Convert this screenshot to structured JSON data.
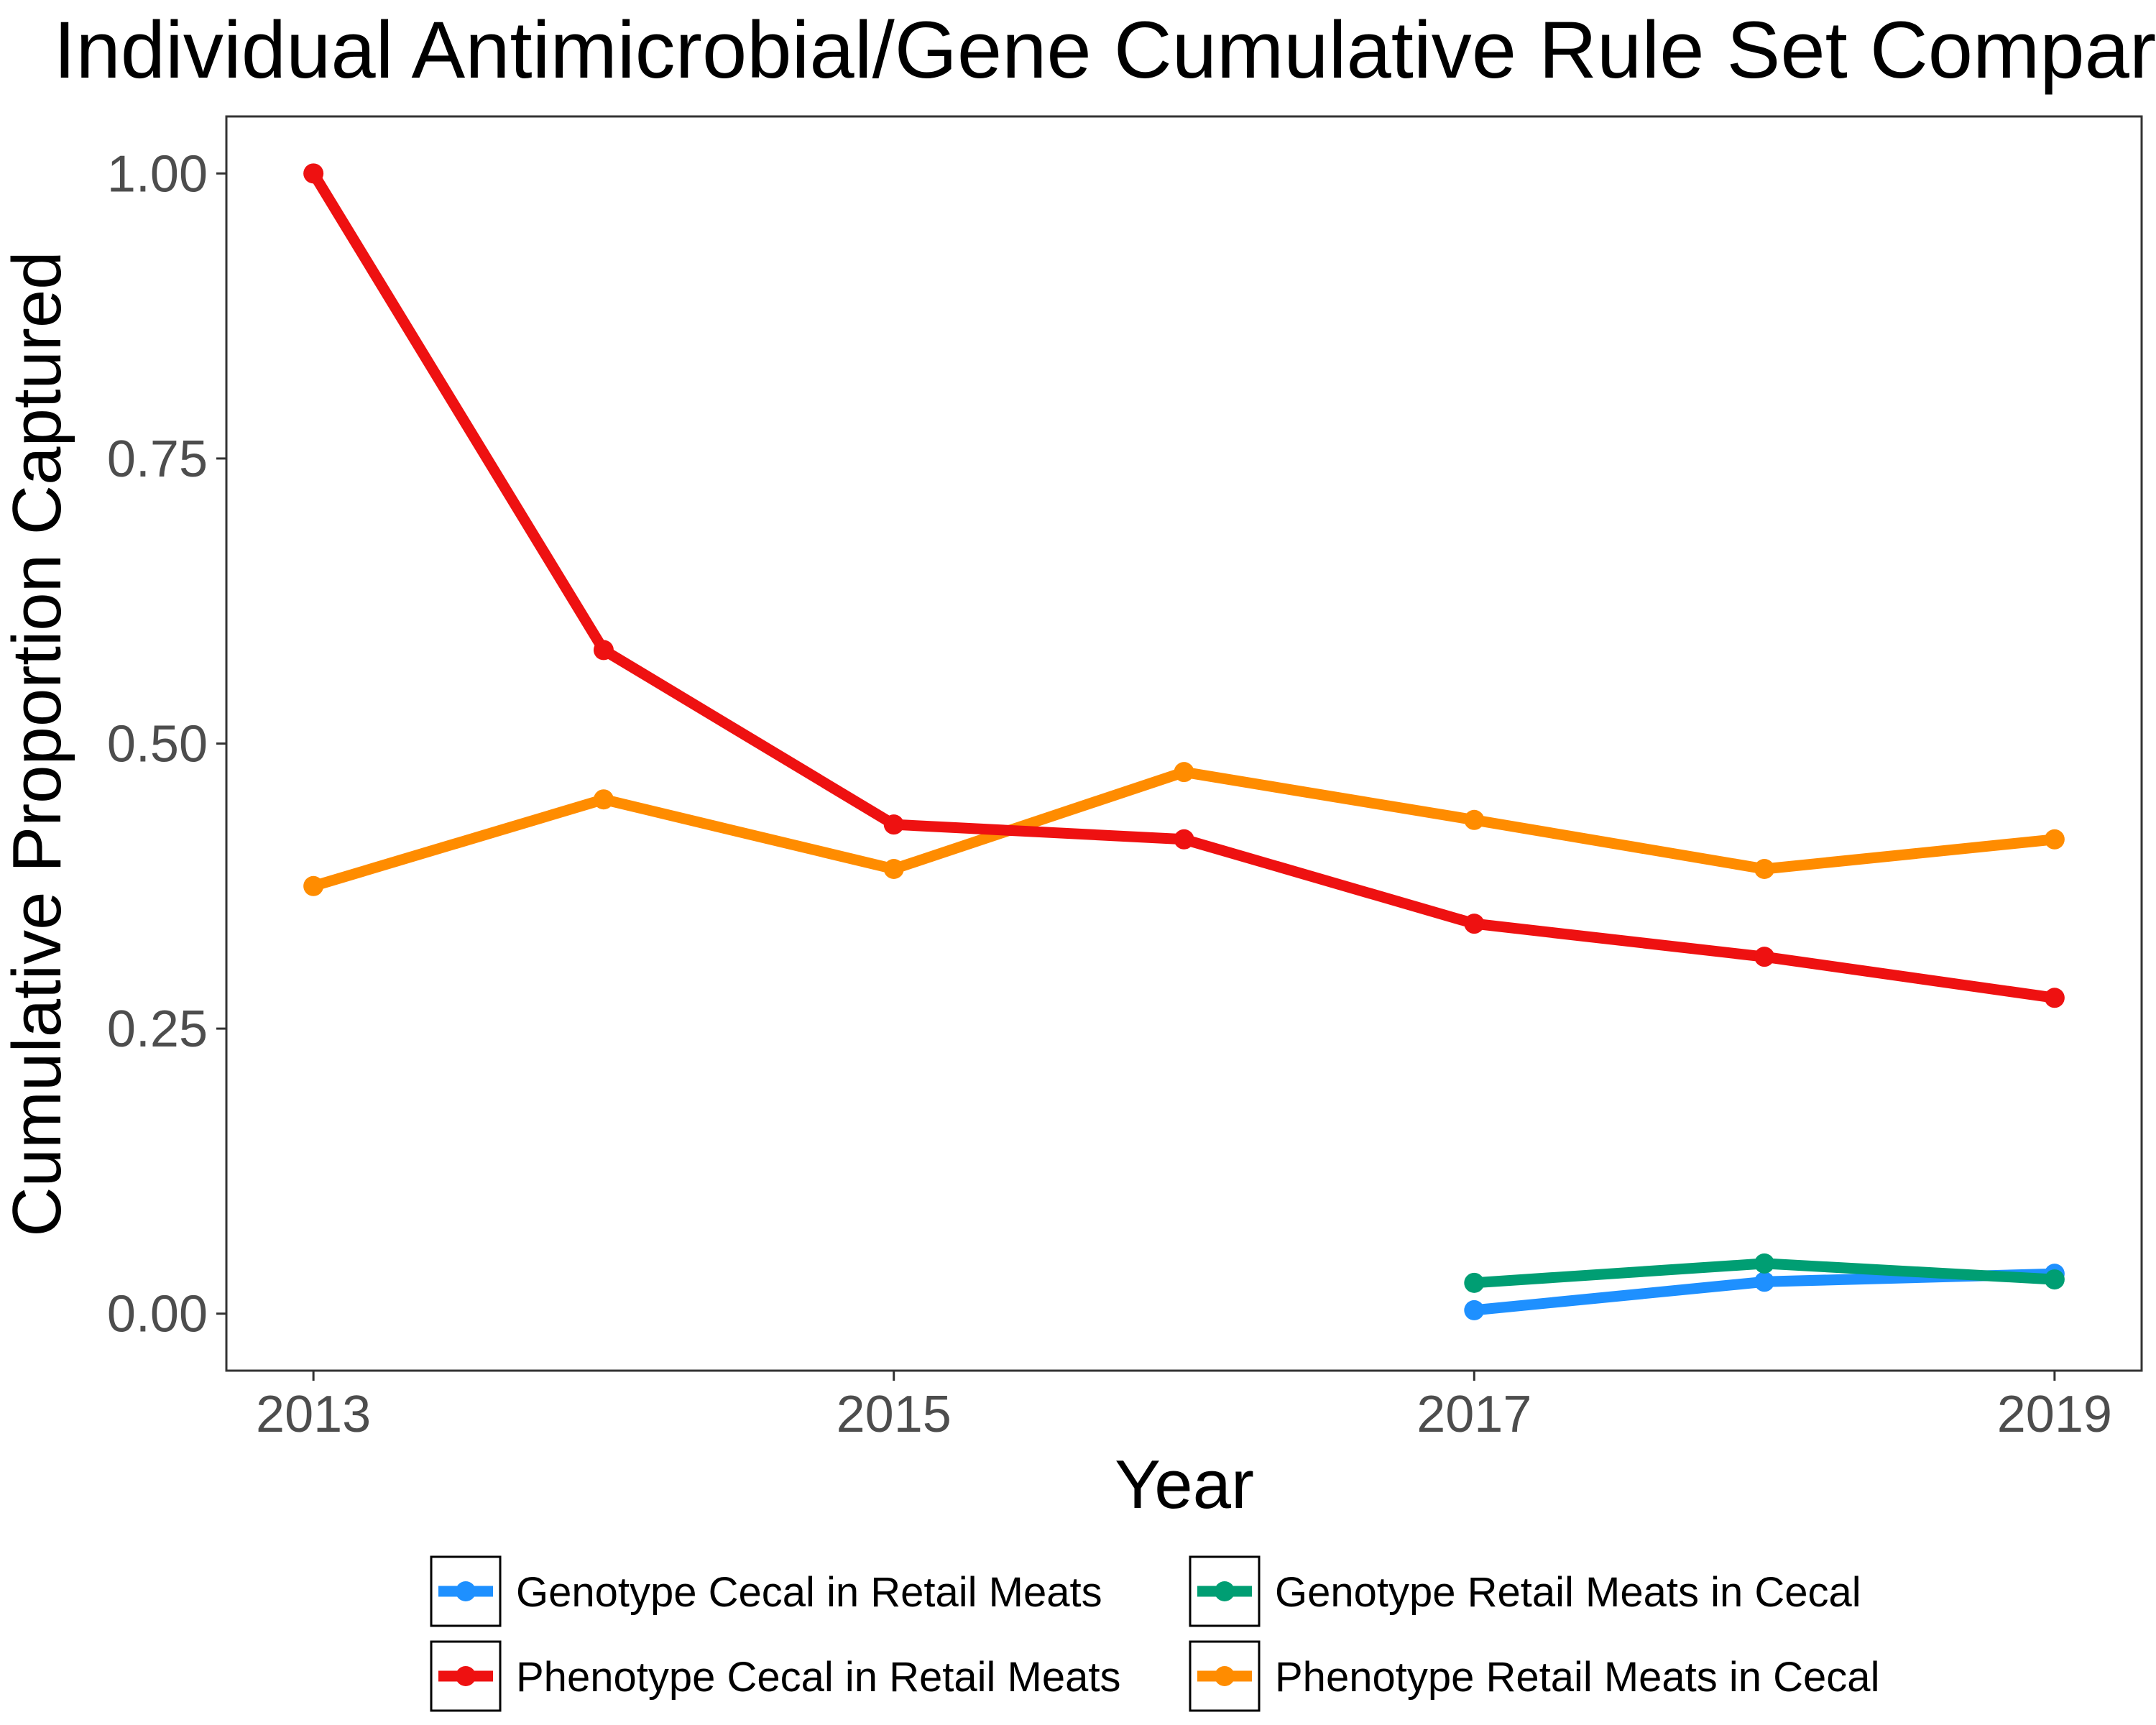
{
  "chart_data": {
    "type": "line",
    "title": "Individual Antimicrobial/Gene Cumulative Rule Set Comparison",
    "xlabel": "Year",
    "ylabel": "Cumulative Proportion Captured",
    "xlim": [
      2012.7,
      2019.3
    ],
    "ylim": [
      -0.05,
      1.05
    ],
    "x_ticks": [
      {
        "value": 2013,
        "label": "2013"
      },
      {
        "value": 2015,
        "label": "2015"
      },
      {
        "value": 2017,
        "label": "2017"
      },
      {
        "value": 2019,
        "label": "2019"
      }
    ],
    "y_ticks": [
      {
        "value": 0,
        "label": "0.00"
      },
      {
        "value": 0.25,
        "label": "0.25"
      },
      {
        "value": 0.5,
        "label": "0.50"
      },
      {
        "value": 0.75,
        "label": "0.75"
      },
      {
        "value": 1,
        "label": "1.00"
      }
    ],
    "grid": false,
    "legend_position": "bottom",
    "series": [
      {
        "name": "Genotype Cecal in Retail Meats",
        "color": "#1e90ff",
        "x": [
          2017,
          2018,
          2019
        ],
        "y": [
          0.003,
          0.028,
          0.035
        ]
      },
      {
        "name": "Genotype Retail Meats in Cecal",
        "color": "#009e73",
        "x": [
          2017,
          2018,
          2019
        ],
        "y": [
          0.027,
          0.044,
          0.03
        ]
      },
      {
        "name": "Phenotype Cecal in Retail Meats",
        "color": "#ee1111",
        "x": [
          2013,
          2014,
          2015,
          2016,
          2017,
          2018,
          2019
        ],
        "y": [
          1.0,
          0.582,
          0.429,
          0.416,
          0.342,
          0.313,
          0.277
        ]
      },
      {
        "name": "Phenotype Retail Meats in Cecal",
        "color": "#ff8c00",
        "x": [
          2013,
          2014,
          2015,
          2016,
          2017,
          2018,
          2019
        ],
        "y": [
          0.375,
          0.451,
          0.39,
          0.475,
          0.433,
          0.39,
          0.416
        ]
      }
    ]
  }
}
